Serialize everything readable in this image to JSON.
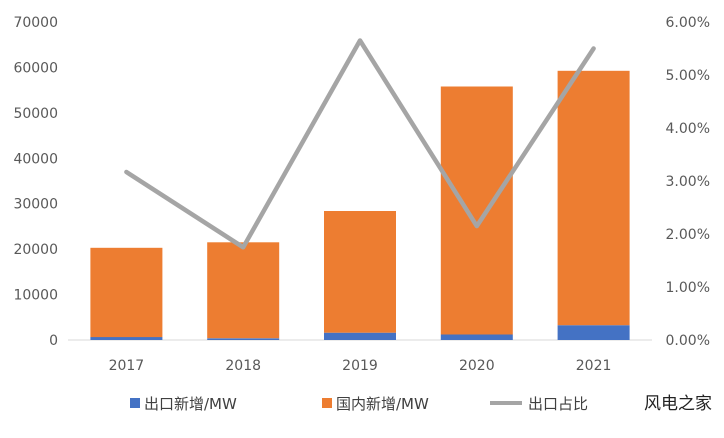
{
  "chart_data": {
    "type": "bar",
    "categories": [
      "2017",
      "2018",
      "2019",
      "2020",
      "2021"
    ],
    "series": [
      {
        "name": "出口新增/MW",
        "kind": "stacked-bar",
        "axis": "left",
        "color": "#4472C4",
        "values": [
          650,
          380,
          1600,
          1200,
          3250
        ]
      },
      {
        "name": "国内新增/MW",
        "kind": "stacked-bar",
        "axis": "left",
        "color": "#ED7D31",
        "values": [
          19650,
          21120,
          26800,
          54600,
          56000
        ]
      },
      {
        "name": "出口占比",
        "kind": "line",
        "axis": "right",
        "color": "#A5A5A5",
        "values": [
          0.0317,
          0.0175,
          0.0565,
          0.0215,
          0.055
        ]
      }
    ],
    "y_left": {
      "min": 0,
      "max": 70000,
      "ticks": [
        "0",
        "10000",
        "20000",
        "30000",
        "40000",
        "50000",
        "60000",
        "70000"
      ]
    },
    "y_right": {
      "min": 0,
      "max": 0.06,
      "ticks": [
        "0.00%",
        "1.00%",
        "2.00%",
        "3.00%",
        "4.00%",
        "5.00%",
        "6.00%"
      ]
    },
    "grid": false,
    "legend_position": "bottom"
  },
  "watermark": "风电之家"
}
